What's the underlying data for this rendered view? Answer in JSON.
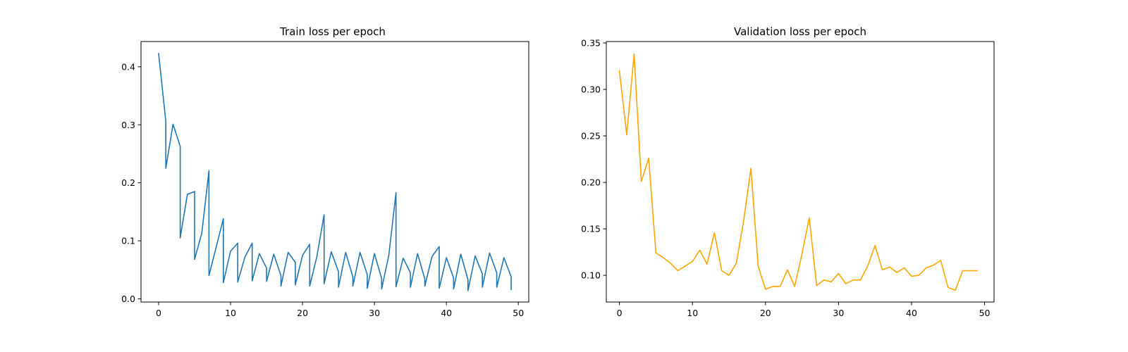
{
  "chart_data": [
    {
      "type": "line",
      "title": "Train loss per epoch",
      "xlabel": "",
      "ylabel": "",
      "xlim": [
        -2.45,
        51.45
      ],
      "ylim": [
        -0.0055,
        0.4435
      ],
      "xticks": [
        0,
        10,
        20,
        30,
        40,
        50
      ],
      "yticks": [
        0.0,
        0.1,
        0.2,
        0.3,
        0.4
      ],
      "ytick_labels": [
        "0.0",
        "0.1",
        "0.2",
        "0.3",
        "0.4"
      ],
      "grid": false,
      "series": [
        {
          "color": "#1f77b4",
          "x": [
            0,
            1,
            1,
            2,
            3,
            3,
            4,
            5,
            5,
            6,
            7,
            7,
            8,
            9,
            9,
            10,
            11,
            11,
            12,
            13,
            13,
            14,
            15,
            15,
            16,
            17,
            17,
            18,
            19,
            19,
            20,
            21,
            21,
            22,
            23,
            23,
            24,
            25,
            25,
            26,
            27,
            27,
            28,
            29,
            29,
            30,
            31,
            31,
            32,
            33,
            33,
            34,
            35,
            35,
            36,
            37,
            37,
            38,
            39,
            39,
            40,
            41,
            41,
            42,
            43,
            43,
            44,
            45,
            45,
            46,
            47,
            47,
            48,
            49,
            49
          ],
          "y": [
            0.423,
            0.306,
            0.225,
            0.301,
            0.263,
            0.105,
            0.18,
            0.185,
            0.068,
            0.113,
            0.221,
            0.04,
            0.089,
            0.138,
            0.028,
            0.082,
            0.096,
            0.029,
            0.072,
            0.096,
            0.031,
            0.078,
            0.053,
            0.03,
            0.077,
            0.04,
            0.022,
            0.08,
            0.063,
            0.024,
            0.075,
            0.094,
            0.022,
            0.073,
            0.145,
            0.026,
            0.081,
            0.047,
            0.02,
            0.08,
            0.038,
            0.022,
            0.08,
            0.042,
            0.018,
            0.078,
            0.035,
            0.017,
            0.075,
            0.183,
            0.021,
            0.07,
            0.045,
            0.02,
            0.078,
            0.034,
            0.022,
            0.073,
            0.09,
            0.018,
            0.071,
            0.036,
            0.017,
            0.077,
            0.033,
            0.014,
            0.074,
            0.043,
            0.02,
            0.079,
            0.045,
            0.02,
            0.071,
            0.038,
            0.016
          ]
        }
      ]
    },
    {
      "type": "line",
      "title": "Validation loss per epoch",
      "xlabel": "",
      "ylabel": "",
      "xlim": [
        -1.8,
        51.3
      ],
      "ylim": [
        0.0713,
        0.3515
      ],
      "xticks": [
        0,
        10,
        20,
        30,
        40,
        50
      ],
      "yticks": [
        0.1,
        0.15,
        0.2,
        0.25,
        0.3,
        0.35
      ],
      "ytick_labels": [
        "0.10",
        "0.15",
        "0.20",
        "0.25",
        "0.30",
        "0.35"
      ],
      "grid": false,
      "series": [
        {
          "color": "#ffa500",
          "x": [
            0,
            1,
            2,
            3,
            4,
            5,
            6,
            7,
            8,
            9,
            10,
            11,
            12,
            13,
            14,
            15,
            16,
            17,
            18,
            19,
            20,
            21,
            22,
            23,
            24,
            25,
            26,
            27,
            28,
            29,
            30,
            31,
            32,
            33,
            34,
            35,
            36,
            37,
            38,
            39,
            40,
            41,
            42,
            43,
            44,
            45,
            46,
            47,
            48,
            49
          ],
          "y": [
            0.32,
            0.251,
            0.338,
            0.201,
            0.226,
            0.124,
            0.119,
            0.113,
            0.105,
            0.11,
            0.115,
            0.127,
            0.112,
            0.146,
            0.105,
            0.1,
            0.113,
            0.158,
            0.215,
            0.11,
            0.085,
            0.088,
            0.088,
            0.106,
            0.088,
            0.123,
            0.162,
            0.089,
            0.095,
            0.093,
            0.102,
            0.091,
            0.095,
            0.095,
            0.11,
            0.132,
            0.106,
            0.109,
            0.103,
            0.108,
            0.099,
            0.1,
            0.108,
            0.111,
            0.116,
            0.087,
            0.084,
            0.105,
            0.105,
            0.105
          ]
        }
      ]
    }
  ]
}
